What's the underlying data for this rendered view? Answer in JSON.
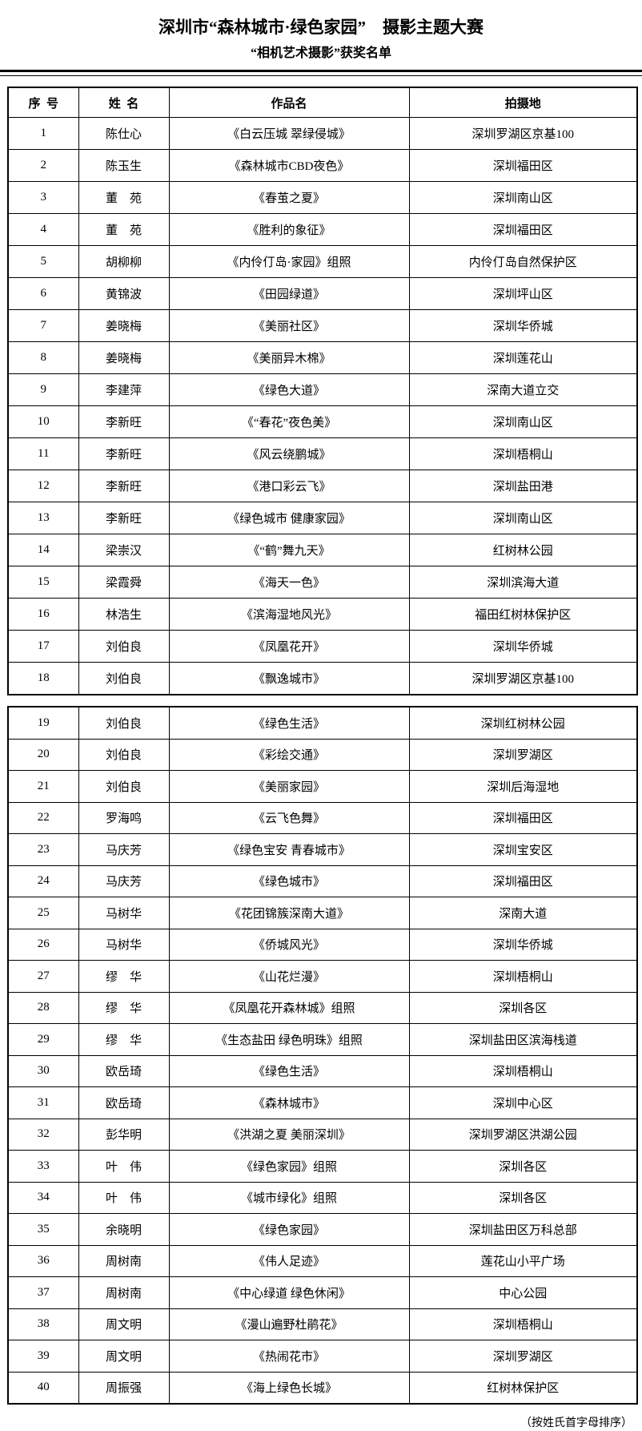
{
  "page": {
    "title": "深圳市“森林城市·绿色家园”　摄影主题大赛",
    "subtitle": "“相机艺术摄影”获奖名单",
    "footer_note": "（按姓氏首字母排序）"
  },
  "colors": {
    "text": "#000000",
    "border": "#000000",
    "background": "#ffffff"
  },
  "table": {
    "headers": [
      "序  号",
      "姓  名",
      "作品名",
      "拍摄地"
    ],
    "split_after_row": 18,
    "rows": [
      [
        "1",
        "陈仕心",
        "《白云压城 翠绿侵城》",
        "深圳罗湖区京基100"
      ],
      [
        "2",
        "陈玉生",
        "《森林城市CBD夜色》",
        "深圳福田区"
      ],
      [
        "3",
        "董　苑",
        "《春茧之夏》",
        "深圳南山区"
      ],
      [
        "4",
        "董　苑",
        "《胜利的象征》",
        "深圳福田区"
      ],
      [
        "5",
        "胡柳柳",
        "《内伶仃岛·家园》组照",
        "内伶仃岛自然保护区"
      ],
      [
        "6",
        "黄锦波",
        "《田园绿道》",
        "深圳坪山区"
      ],
      [
        "7",
        "姜晓梅",
        "《美丽社区》",
        "深圳华侨城"
      ],
      [
        "8",
        "姜晓梅",
        "《美丽异木棉》",
        "深圳莲花山"
      ],
      [
        "9",
        "李建萍",
        "《绿色大道》",
        "深南大道立交"
      ],
      [
        "10",
        "李新旺",
        "《“春花”夜色美》",
        "深圳南山区"
      ],
      [
        "11",
        "李新旺",
        "《风云绕鹏城》",
        "深圳梧桐山"
      ],
      [
        "12",
        "李新旺",
        "《港口彩云飞》",
        "深圳盐田港"
      ],
      [
        "13",
        "李新旺",
        "《绿色城市 健康家园》",
        "深圳南山区"
      ],
      [
        "14",
        "梁崇汉",
        "《“鹤”舞九天》",
        "红树林公园"
      ],
      [
        "15",
        "梁霞舜",
        "《海天一色》",
        "深圳滨海大道"
      ],
      [
        "16",
        "林浩生",
        "《滨海湿地风光》",
        "福田红树林保护区"
      ],
      [
        "17",
        "刘伯良",
        "《凤凰花开》",
        "深圳华侨城"
      ],
      [
        "18",
        "刘伯良",
        "《飘逸城市》",
        "深圳罗湖区京基100"
      ],
      [
        "19",
        "刘伯良",
        "《绿色生活》",
        "深圳红树林公园"
      ],
      [
        "20",
        "刘伯良",
        "《彩绘交通》",
        "深圳罗湖区"
      ],
      [
        "21",
        "刘伯良",
        "《美丽家园》",
        "深圳后海湿地"
      ],
      [
        "22",
        "罗海鸣",
        "《云飞色舞》",
        "深圳福田区"
      ],
      [
        "23",
        "马庆芳",
        "《绿色宝安 青春城市》",
        "深圳宝安区"
      ],
      [
        "24",
        "马庆芳",
        "《绿色城市》",
        "深圳福田区"
      ],
      [
        "25",
        "马树华",
        "《花团锦簇深南大道》",
        "深南大道"
      ],
      [
        "26",
        "马树华",
        "《侨城风光》",
        "深圳华侨城"
      ],
      [
        "27",
        "缪　华",
        "《山花烂漫》",
        "深圳梧桐山"
      ],
      [
        "28",
        "缪　华",
        "《凤凰花开森林城》组照",
        "深圳各区"
      ],
      [
        "29",
        "缪　华",
        "《生态盐田 绿色明珠》组照",
        "深圳盐田区滨海栈道"
      ],
      [
        "30",
        "欧岳琦",
        "《绿色生活》",
        "深圳梧桐山"
      ],
      [
        "31",
        "欧岳琦",
        "《森林城市》",
        "深圳中心区"
      ],
      [
        "32",
        "彭华明",
        "《洪湖之夏 美丽深圳》",
        "深圳罗湖区洪湖公园"
      ],
      [
        "33",
        "叶　伟",
        "《绿色家园》组照",
        "深圳各区"
      ],
      [
        "34",
        "叶　伟",
        "《城市绿化》组照",
        "深圳各区"
      ],
      [
        "35",
        "余晓明",
        "《绿色家园》",
        "深圳盐田区万科总部"
      ],
      [
        "36",
        "周树南",
        "《伟人足迹》",
        "莲花山小平广场"
      ],
      [
        "37",
        "周树南",
        "《中心绿道 绿色休闲》",
        "中心公园"
      ],
      [
        "38",
        "周文明",
        "《漫山遍野杜鹃花》",
        "深圳梧桐山"
      ],
      [
        "39",
        "周文明",
        "《热闹花市》",
        "深圳罗湖区"
      ],
      [
        "40",
        "周振强",
        "《海上绿色长城》",
        "红树林保护区"
      ]
    ]
  }
}
